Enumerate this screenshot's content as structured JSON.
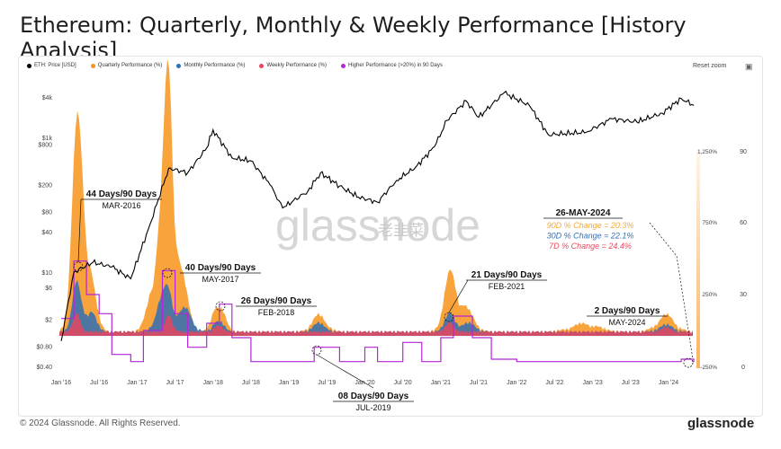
{
  "title": "Ethereum: Quarterly, Monthly & Weekly Performance [History Analysis]",
  "legend": [
    {
      "label": "ETH: Price [USD]",
      "color": "#000000"
    },
    {
      "label": "Quarterly Performance (%)",
      "color": "#f7931a"
    },
    {
      "label": "Monthly Performance (%)",
      "color": "#2f6fb5"
    },
    {
      "label": "Weekly Performance (%)",
      "color": "#e8475f"
    },
    {
      "label": "Higher Performance (>20%) in 90 Days",
      "color": "#b526d6"
    }
  ],
  "toolbar": {
    "reset_label": "Reset zoom",
    "camera_icon": "camera-icon"
  },
  "watermark": {
    "text": "glassnode",
    "social": "老韭菜"
  },
  "footer": {
    "copyright": "© 2024 Glassnode. All Rights Reserved.",
    "brand": "glassnode"
  },
  "chart_data": {
    "type": "line",
    "x_ticks": [
      "Jan '16",
      "Jul '16",
      "Jan '17",
      "Jul '17",
      "Jan '18",
      "Jul '18",
      "Jan '19",
      "Jul '19",
      "Jan '20",
      "Jul '20",
      "Jan '21",
      "Jul '21",
      "Jan '22",
      "Jul '22",
      "Jan '23",
      "Jul '23",
      "Jan '24"
    ],
    "y_left_ticks": [
      "$4k",
      "$1k",
      "$800",
      "$200",
      "$80",
      "$40",
      "$10",
      "$6",
      "$2",
      "$0.80",
      "$0.40"
    ],
    "y_right_pct_ticks": [
      "1,250%",
      "750%",
      "250%",
      "-250%"
    ],
    "y_right_days_ticks": [
      "90",
      "60",
      "30",
      "0"
    ],
    "y_left_scale": "log",
    "series": [
      {
        "name": "ETH: Price [USD]",
        "x": [
          "2016-01",
          "2016-03",
          "2016-06",
          "2016-09",
          "2016-12",
          "2017-03",
          "2017-06",
          "2017-09",
          "2017-12",
          "2018-01",
          "2018-04",
          "2018-07",
          "2018-10",
          "2018-12",
          "2019-04",
          "2019-06",
          "2019-09",
          "2019-12",
          "2020-03",
          "2020-06",
          "2020-09",
          "2020-12",
          "2021-02",
          "2021-05",
          "2021-07",
          "2021-11",
          "2022-03",
          "2022-06",
          "2022-12",
          "2023-04",
          "2023-08",
          "2023-12",
          "2024-03",
          "2024-05"
        ],
        "values": [
          0.95,
          10,
          14,
          12,
          8,
          50,
          350,
          300,
          700,
          1300,
          500,
          450,
          200,
          90,
          160,
          300,
          190,
          130,
          110,
          230,
          360,
          730,
          1800,
          3500,
          2000,
          4600,
          3000,
          1100,
          1200,
          1900,
          1700,
          2300,
          3800,
          3000
        ]
      },
      {
        "name": "Higher Performance (>20%) in 90 Days",
        "x": [
          "2016-01",
          "2016-03",
          "2016-05",
          "2016-07",
          "2016-09",
          "2016-12",
          "2017-02",
          "2017-05",
          "2017-07",
          "2017-09",
          "2017-12",
          "2018-02",
          "2018-04",
          "2018-07",
          "2019-01",
          "2019-05",
          "2019-07",
          "2019-09",
          "2020-01",
          "2020-03",
          "2020-07",
          "2020-10",
          "2021-01",
          "2021-03",
          "2021-06",
          "2021-09",
          "2022-01",
          "2023-01",
          "2024-03",
          "2024-05"
        ],
        "values": [
          20,
          44,
          30,
          22,
          5,
          2,
          15,
          40,
          22,
          8,
          18,
          26,
          12,
          2,
          2,
          8,
          8,
          2,
          8,
          2,
          10,
          2,
          12,
          21,
          12,
          3,
          2,
          2,
          3,
          2
        ]
      }
    ],
    "annotations": [
      {
        "label": "44 Days/90 Days",
        "sub": "MAR-2016"
      },
      {
        "label": "40 Days/90 Days",
        "sub": "MAY-2017"
      },
      {
        "label": "26 Days/90 Days",
        "sub": "FEB-2018"
      },
      {
        "label": "08 Days/90 Days",
        "sub": "JUL-2019"
      },
      {
        "label": "21 Days/90 Days",
        "sub": "FEB-2021"
      },
      {
        "label": "2 Days/90 Days",
        "sub": "MAY-2024"
      }
    ],
    "callout": {
      "title": "26-MAY-2024",
      "lines": [
        {
          "text": "90D % Change = 20.3%",
          "color": "#f7a73a"
        },
        {
          "text": "30D % Change = 22.1%",
          "color": "#2f6fb5"
        },
        {
          "text": "7D % Change = 24.4%",
          "color": "#e8475f"
        }
      ]
    }
  }
}
